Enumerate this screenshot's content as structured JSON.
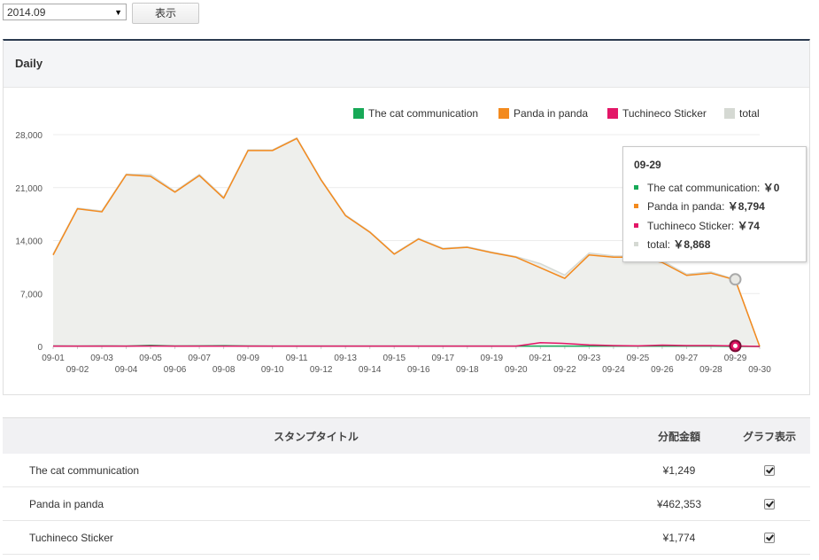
{
  "toolbar": {
    "month_value": "2014.09",
    "show_label": "表示"
  },
  "panel": {
    "title": "Daily"
  },
  "colors": {
    "cat": "#17a957",
    "panda": "#f38a1e",
    "tuchineco": "#e31667",
    "total": "#d5d9d3",
    "total_fill": "#eeefec"
  },
  "chart_data": {
    "type": "area",
    "x": [
      "09-01",
      "09-02",
      "09-03",
      "09-04",
      "09-05",
      "09-06",
      "09-07",
      "09-08",
      "09-09",
      "09-10",
      "09-11",
      "09-12",
      "09-13",
      "09-14",
      "09-15",
      "09-16",
      "09-17",
      "09-18",
      "09-19",
      "09-20",
      "09-21",
      "09-22",
      "09-23",
      "09-24",
      "09-25",
      "09-26",
      "09-27",
      "09-28",
      "09-29",
      "09-30"
    ],
    "ylim": [
      0,
      28000
    ],
    "yticks": [
      {
        "v": 0,
        "label": "0"
      },
      {
        "v": 7000,
        "label": "7,000"
      },
      {
        "v": 14000,
        "label": "14,000"
      },
      {
        "v": 21000,
        "label": "21,000"
      },
      {
        "v": 28000,
        "label": "28,000"
      }
    ],
    "legend_position": "top-right",
    "series": [
      {
        "name": "The cat communication",
        "key": "cat",
        "values": [
          60,
          40,
          60,
          50,
          150,
          60,
          80,
          100,
          60,
          40,
          40,
          40,
          40,
          40,
          40,
          40,
          40,
          40,
          40,
          40,
          40,
          40,
          40,
          40,
          40,
          40,
          40,
          40,
          0,
          0
        ]
      },
      {
        "name": "Panda in panda",
        "key": "panda",
        "values": [
          12100,
          18200,
          17800,
          22700,
          22500,
          20400,
          22600,
          19600,
          25900,
          25900,
          27500,
          22000,
          17300,
          15100,
          12200,
          14200,
          12900,
          13100,
          12400,
          11800,
          10400,
          9000,
          12100,
          11800,
          11800,
          11100,
          9400,
          9700,
          8794,
          0
        ]
      },
      {
        "name": "Tuchineco Sticker",
        "key": "tuchineco",
        "values": [
          50,
          40,
          50,
          40,
          60,
          40,
          50,
          40,
          40,
          40,
          40,
          40,
          40,
          40,
          40,
          40,
          40,
          40,
          40,
          40,
          500,
          400,
          200,
          120,
          80,
          180,
          120,
          120,
          74,
          0
        ]
      },
      {
        "name": "total",
        "key": "total",
        "values": [
          12210,
          18280,
          17910,
          22790,
          22710,
          20500,
          22730,
          19740,
          26000,
          25980,
          27580,
          22080,
          17380,
          15180,
          12280,
          14280,
          12980,
          13180,
          12480,
          11880,
          10940,
          9440,
          12340,
          11960,
          11920,
          11320,
          9560,
          9860,
          8868,
          0
        ]
      }
    ]
  },
  "tooltip": {
    "date": "09-29",
    "rows": [
      {
        "label": "The cat communication:",
        "value": "￥0"
      },
      {
        "label": "Panda in panda:",
        "value": "￥8,794"
      },
      {
        "label": "Tuchineco Sticker:",
        "value": "￥74"
      },
      {
        "label": "total:",
        "value": "￥8,868"
      }
    ]
  },
  "table": {
    "headers": {
      "title": "スタンプタイトル",
      "amount": "分配金額",
      "graph": "グラフ表示"
    },
    "rows": [
      {
        "title": "The cat communication",
        "amount": "¥1,249",
        "checked": true
      },
      {
        "title": "Panda in panda",
        "amount": "¥462,353",
        "checked": true
      },
      {
        "title": "Tuchineco Sticker",
        "amount": "¥1,774",
        "checked": true
      }
    ]
  }
}
